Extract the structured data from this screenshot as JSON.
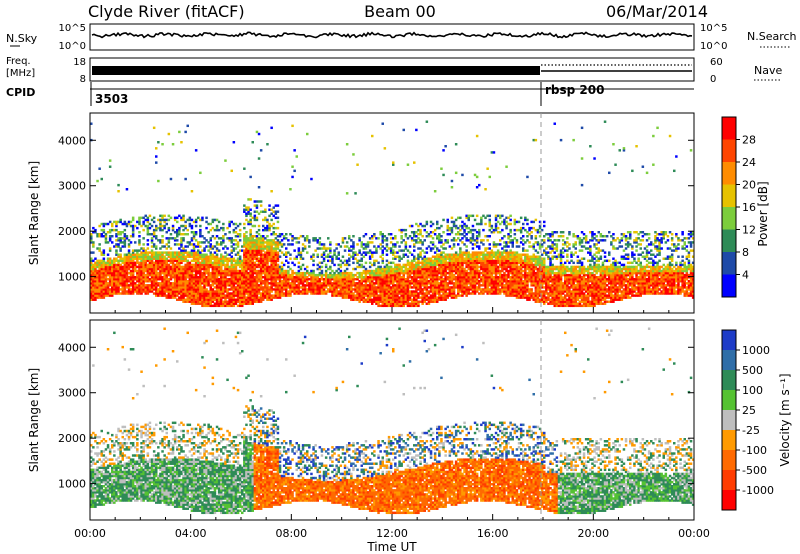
{
  "header": {
    "title": "Clyde River (fitACF)",
    "beam": "Beam 00",
    "date": "06/Mar/2014"
  },
  "top_panels": {
    "nsky_label": "N.Sky",
    "nsky_ticks": [
      "10^5",
      "10^0"
    ],
    "nsearch_label": "N.Search",
    "nsearch_ticks": [
      "10^5",
      "10^0"
    ],
    "freq_label_1": "Freq.",
    "freq_label_2": "[MHz]",
    "freq_ticks": [
      "18",
      "8"
    ],
    "nave_label": "Nave",
    "nave_ticks": [
      "60",
      "0"
    ],
    "cpid_label": "CPID",
    "cpid_segments": [
      "3503",
      "rbsp 200"
    ]
  },
  "chart_data": [
    {
      "type": "heatmap",
      "name": "power",
      "ylabel": "Slant Range [km]",
      "yticks": [
        1000,
        2000,
        3000,
        4000
      ],
      "ylim": [
        200,
        4600
      ],
      "xlim_hours": [
        0,
        24
      ],
      "colorbar_label": "Power [dB]",
      "colorbar_ticks": [
        "4",
        "8",
        "12",
        "16",
        "20",
        "24",
        "28"
      ],
      "colorbar_colors": [
        "#0000ff",
        "#1e4aa8",
        "#2e8b57",
        "#7ccd3c",
        "#e6c200",
        "#ff8c00",
        "#ff4500",
        "#ff0000"
      ]
    },
    {
      "type": "heatmap",
      "name": "velocity",
      "ylabel": "Slant Range [km]",
      "yticks": [
        1000,
        2000,
        3000,
        4000
      ],
      "ylim": [
        200,
        4600
      ],
      "xlim_hours": [
        0,
        24
      ],
      "xticks": [
        "00:00",
        "04:00",
        "08:00",
        "12:00",
        "16:00",
        "20:00",
        "00:00"
      ],
      "xlabel": "Time UT",
      "colorbar_label": "Velocity [m s⁻¹]",
      "colorbar_ticks": [
        "1000",
        "500",
        "100",
        "25",
        "-25",
        "-100",
        "-500",
        "-1000"
      ],
      "colorbar_colors": [
        "#1e3cc8",
        "#2f6ea8",
        "#2e8b57",
        "#55c232",
        "#bebebe",
        "#ff9a00",
        "#ff6a00",
        "#ff3c00",
        "#ff0000"
      ]
    }
  ]
}
